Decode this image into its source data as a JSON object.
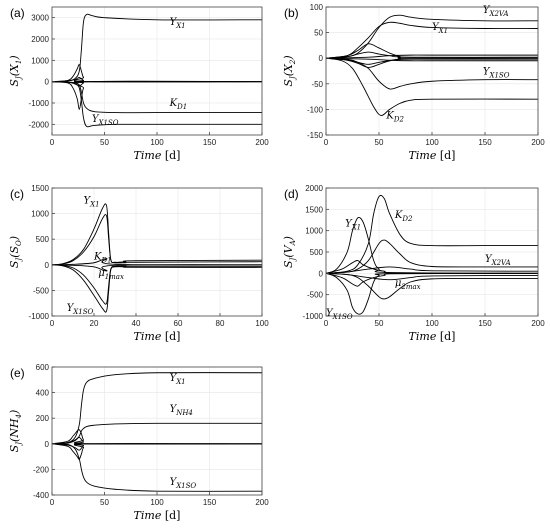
{
  "chart_data": [
    {
      "type": "line",
      "panel_label": "(a)",
      "ylabel": "S_J(X_1)",
      "xlabel": "Time [d]",
      "xlim": [
        0,
        200
      ],
      "ylim": [
        -2500,
        3500
      ],
      "xticks": [
        0,
        50,
        100,
        150,
        200
      ],
      "yticks": [
        -2000,
        -1000,
        0,
        1000,
        2000,
        3000
      ],
      "grid": true,
      "annotations": [
        {
          "text": "Y_X1",
          "x": 112,
          "y": 2650
        },
        {
          "text": "K_D1",
          "x": 112,
          "y": -1150
        },
        {
          "text": "Y_X1SO",
          "x": 38,
          "y": -1900
        }
      ],
      "series": [
        {
          "name": "Y_X1",
          "x": [
            0,
            15,
            22,
            26,
            28,
            30,
            33,
            38,
            50,
            100,
            200
          ],
          "y": [
            0,
            40,
            150,
            500,
            1500,
            2800,
            3150,
            3100,
            3000,
            2900,
            2900
          ]
        },
        {
          "name": "K_D1",
          "x": [
            0,
            15,
            22,
            26,
            28,
            30,
            33,
            40,
            60,
            100,
            200
          ],
          "y": [
            0,
            -20,
            -50,
            -150,
            -500,
            -1000,
            -1250,
            -1400,
            -1450,
            -1450,
            -1450
          ]
        },
        {
          "name": "Y_X1SO",
          "x": [
            0,
            15,
            22,
            26,
            28,
            30,
            33,
            40,
            60,
            100,
            200
          ],
          "y": [
            0,
            -30,
            -80,
            -300,
            -900,
            -1700,
            -2100,
            -2050,
            -2000,
            -2000,
            -2000
          ]
        },
        {
          "x": [
            0,
            15,
            20,
            24,
            26,
            28,
            30,
            35,
            200
          ],
          "y": [
            0,
            60,
            250,
            600,
            800,
            500,
            200,
            0,
            0
          ]
        },
        {
          "x": [
            0,
            15,
            20,
            24,
            26,
            28,
            30,
            35,
            200
          ],
          "y": [
            0,
            -60,
            -300,
            -800,
            -1300,
            -800,
            -300,
            0,
            0
          ]
        },
        {
          "x": [
            0,
            15,
            22,
            26,
            30,
            35,
            200
          ],
          "y": [
            0,
            30,
            100,
            200,
            60,
            0,
            0
          ]
        },
        {
          "x": [
            0,
            15,
            22,
            26,
            30,
            35,
            200
          ],
          "y": [
            0,
            -30,
            -100,
            -200,
            -60,
            0,
            0
          ]
        }
      ]
    },
    {
      "type": "line",
      "panel_label": "(b)",
      "ylabel": "S_J(X_2)",
      "xlabel": "Time [d]",
      "xlim": [
        0,
        200
      ],
      "ylim": [
        -150,
        100
      ],
      "xticks": [
        0,
        50,
        100,
        150,
        200
      ],
      "yticks": [
        -150,
        -100,
        -50,
        0,
        50,
        100
      ],
      "grid": true,
      "annotations": [
        {
          "text": "Y_X2VA",
          "x": 148,
          "y": 88
        },
        {
          "text": "Y_X1",
          "x": 100,
          "y": 55
        },
        {
          "text": "Y_X1SO",
          "x": 148,
          "y": -32
        },
        {
          "text": "K_D2",
          "x": 57,
          "y": -118
        }
      ],
      "series": [
        {
          "name": "Y_X2VA",
          "x": [
            0,
            20,
            30,
            40,
            50,
            60,
            70,
            80,
            100,
            150,
            200
          ],
          "y": [
            0,
            3,
            10,
            30,
            60,
            80,
            84,
            80,
            76,
            73,
            73
          ]
        },
        {
          "name": "Y_X1",
          "x": [
            0,
            20,
            30,
            40,
            50,
            60,
            70,
            80,
            100,
            150,
            200
          ],
          "y": [
            0,
            5,
            20,
            40,
            62,
            70,
            68,
            64,
            60,
            58,
            58
          ]
        },
        {
          "name": "Y_X1SO",
          "x": [
            0,
            20,
            30,
            40,
            50,
            60,
            70,
            80,
            100,
            150,
            200
          ],
          "y": [
            0,
            -2,
            -8,
            -20,
            -45,
            -60,
            -55,
            -50,
            -45,
            -42,
            -42
          ]
        },
        {
          "name": "K_D2",
          "x": [
            0,
            15,
            25,
            35,
            45,
            52,
            60,
            70,
            80,
            100,
            200
          ],
          "y": [
            0,
            -5,
            -20,
            -55,
            -95,
            -112,
            -100,
            -88,
            -82,
            -80,
            -80
          ]
        },
        {
          "x": [
            0,
            20,
            30,
            40,
            50,
            60,
            70,
            80,
            200
          ],
          "y": [
            0,
            5,
            15,
            28,
            20,
            10,
            3,
            0,
            0
          ]
        },
        {
          "x": [
            0,
            20,
            30,
            40,
            50,
            60,
            70,
            80,
            200
          ],
          "y": [
            0,
            -4,
            -10,
            -18,
            -12,
            -5,
            -2,
            0,
            0
          ]
        },
        {
          "x": [
            0,
            20,
            30,
            40,
            50,
            60,
            80,
            200
          ],
          "y": [
            0,
            3,
            8,
            12,
            8,
            5,
            2,
            2
          ]
        },
        {
          "x": [
            0,
            20,
            30,
            40,
            50,
            60,
            80,
            200
          ],
          "y": [
            0,
            -3,
            -8,
            -12,
            -8,
            -5,
            -2,
            -2
          ]
        },
        {
          "x": [
            0,
            40,
            60,
            80,
            100,
            200
          ],
          "y": [
            0,
            2,
            5,
            6,
            6,
            6
          ]
        },
        {
          "x": [
            0,
            40,
            60,
            80,
            100,
            200
          ],
          "y": [
            0,
            -2,
            -4,
            -5,
            -5,
            -5
          ]
        }
      ]
    },
    {
      "type": "line",
      "panel_label": "(c)",
      "ylabel": "S_J(S_O)",
      "xlabel": "Time [d]",
      "xlim": [
        0,
        100
      ],
      "ylim": [
        -1000,
        1500
      ],
      "xticks": [
        0,
        20,
        40,
        60,
        80,
        100
      ],
      "yticks": [
        -1000,
        -500,
        0,
        500,
        1000,
        1500
      ],
      "grid": true,
      "annotations": [
        {
          "text": "Y_X1",
          "x": 15,
          "y": 1200
        },
        {
          "text": "K_D1",
          "x": 20,
          "y": 100
        },
        {
          "text": "μ_1max",
          "x": 22,
          "y": -220
        },
        {
          "text": "Y_X1SO",
          "x": 7,
          "y": -900
        }
      ],
      "series": [
        {
          "name": "Y_X1",
          "x": [
            0,
            5,
            10,
            15,
            20,
            24,
            26,
            27,
            28,
            30,
            35,
            40,
            100
          ],
          "y": [
            0,
            20,
            100,
            300,
            700,
            1100,
            1150,
            600,
            100,
            50,
            60,
            80,
            90
          ]
        },
        {
          "name": "K_D1",
          "x": [
            0,
            5,
            10,
            15,
            20,
            24,
            26,
            27,
            28,
            30,
            35,
            40,
            100
          ],
          "y": [
            0,
            15,
            80,
            250,
            550,
            900,
            950,
            500,
            100,
            40,
            40,
            50,
            60
          ]
        },
        {
          "name": "Y_X1SO",
          "x": [
            0,
            5,
            10,
            15,
            20,
            24,
            26,
            27,
            28,
            30,
            35,
            40,
            100
          ],
          "y": [
            0,
            -20,
            -100,
            -300,
            -600,
            -850,
            -900,
            -500,
            -100,
            -40,
            -40,
            -50,
            -50
          ]
        },
        {
          "name": "μ_1max",
          "x": [
            0,
            5,
            10,
            15,
            20,
            24,
            26,
            27,
            28,
            30,
            35,
            40,
            100
          ],
          "y": [
            0,
            -10,
            -60,
            -200,
            -450,
            -700,
            -750,
            -400,
            -80,
            -30,
            -25,
            -30,
            -30
          ]
        },
        {
          "x": [
            0,
            10,
            20,
            26,
            30,
            100
          ],
          "y": [
            0,
            10,
            40,
            120,
            10,
            0
          ]
        },
        {
          "x": [
            0,
            10,
            20,
            26,
            30,
            100
          ],
          "y": [
            0,
            -10,
            -40,
            -120,
            -10,
            0
          ]
        }
      ]
    },
    {
      "type": "line",
      "panel_label": "(d)",
      "ylabel": "S_J(V_A)",
      "xlabel": "Time [d]",
      "xlim": [
        0,
        200
      ],
      "ylim": [
        -1000,
        2000
      ],
      "xticks": [
        0,
        50,
        100,
        150,
        200
      ],
      "yticks": [
        -1000,
        -500,
        0,
        500,
        1000,
        1500,
        2000
      ],
      "grid": true,
      "annotations": [
        {
          "text": "Y_X1",
          "x": 18,
          "y": 1100
        },
        {
          "text": "K_D2",
          "x": 65,
          "y": 1300
        },
        {
          "text": "Y_X2VA",
          "x": 150,
          "y": 270
        },
        {
          "text": "μ_2max",
          "x": 65,
          "y": -300
        },
        {
          "text": "Y_X1SO",
          "x": 0,
          "y": -1000
        }
      ],
      "series": [
        {
          "name": "K_D2",
          "x": [
            0,
            20,
            30,
            40,
            45,
            50,
            55,
            60,
            70,
            80,
            100,
            150,
            200
          ],
          "y": [
            0,
            50,
            200,
            700,
            1400,
            1800,
            1750,
            1400,
            900,
            700,
            650,
            650,
            650
          ]
        },
        {
          "name": "Y_X1",
          "x": [
            0,
            10,
            20,
            25,
            30,
            35,
            40,
            45,
            50,
            60,
            200
          ],
          "y": [
            0,
            100,
            500,
            1000,
            1300,
            1200,
            800,
            300,
            100,
            20,
            0
          ]
        },
        {
          "name": "Y_X2VA",
          "x": [
            0,
            20,
            30,
            40,
            50,
            55,
            60,
            70,
            80,
            100,
            150,
            200
          ],
          "y": [
            0,
            30,
            100,
            300,
            700,
            780,
            700,
            450,
            250,
            160,
            150,
            150
          ]
        },
        {
          "name": "Y_X1SO",
          "x": [
            0,
            10,
            20,
            25,
            30,
            35,
            40,
            45,
            50,
            60,
            200
          ],
          "y": [
            0,
            -100,
            -400,
            -800,
            -950,
            -900,
            -600,
            -200,
            -50,
            -10,
            0
          ]
        },
        {
          "name": "μ_2max",
          "x": [
            0,
            20,
            30,
            40,
            50,
            55,
            60,
            70,
            80,
            100,
            150,
            200
          ],
          "y": [
            0,
            -30,
            -100,
            -300,
            -550,
            -600,
            -550,
            -350,
            -200,
            -130,
            -120,
            -120
          ]
        },
        {
          "x": [
            0,
            15,
            25,
            30,
            35,
            45,
            55,
            70,
            200
          ],
          "y": [
            0,
            100,
            250,
            300,
            200,
            100,
            50,
            0,
            0
          ]
        },
        {
          "x": [
            0,
            15,
            25,
            30,
            35,
            45,
            55,
            70,
            200
          ],
          "y": [
            0,
            -100,
            -250,
            -300,
            -200,
            -100,
            -50,
            0,
            0
          ]
        },
        {
          "x": [
            0,
            20,
            40,
            60,
            80,
            100,
            200
          ],
          "y": [
            0,
            30,
            100,
            150,
            100,
            60,
            50
          ]
        },
        {
          "x": [
            0,
            20,
            40,
            60,
            80,
            100,
            200
          ],
          "y": [
            0,
            -30,
            -100,
            -150,
            -100,
            -60,
            -50
          ]
        }
      ]
    },
    {
      "type": "line",
      "panel_label": "(e)",
      "ylabel": "S_J(NH_4)",
      "xlabel": "Time [d]",
      "xlim": [
        0,
        200
      ],
      "ylim": [
        -400,
        600
      ],
      "xticks": [
        0,
        50,
        100,
        150,
        200
      ],
      "yticks": [
        -400,
        -200,
        0,
        200,
        400,
        600
      ],
      "grid": true,
      "annotations": [
        {
          "text": "Y_X1",
          "x": 112,
          "y": 490
        },
        {
          "text": "Y_NH4",
          "x": 112,
          "y": 250
        },
        {
          "text": "Y_X1SO",
          "x": 112,
          "y": -320
        }
      ],
      "series": [
        {
          "name": "Y_X1",
          "x": [
            0,
            15,
            22,
            26,
            28,
            30,
            33,
            40,
            60,
            100,
            200
          ],
          "y": [
            0,
            10,
            50,
            150,
            300,
            420,
            480,
            510,
            540,
            555,
            555
          ]
        },
        {
          "name": "Y_NH4",
          "x": [
            0,
            15,
            22,
            26,
            28,
            30,
            33,
            40,
            60,
            100,
            200
          ],
          "y": [
            0,
            5,
            25,
            60,
            100,
            120,
            135,
            145,
            155,
            160,
            160
          ]
        },
        {
          "name": "Y_X1SO",
          "x": [
            0,
            15,
            22,
            26,
            28,
            30,
            33,
            40,
            60,
            100,
            200
          ],
          "y": [
            0,
            -5,
            -40,
            -120,
            -200,
            -260,
            -300,
            -330,
            -355,
            -370,
            -370
          ]
        },
        {
          "x": [
            0,
            15,
            20,
            24,
            26,
            28,
            30,
            35,
            200
          ],
          "y": [
            0,
            20,
            60,
            100,
            110,
            80,
            30,
            0,
            0
          ]
        },
        {
          "x": [
            0,
            15,
            20,
            24,
            26,
            28,
            30,
            35,
            200
          ],
          "y": [
            0,
            -20,
            -60,
            -100,
            -120,
            -80,
            -30,
            0,
            0
          ]
        },
        {
          "x": [
            0,
            15,
            22,
            26,
            30,
            35,
            200
          ],
          "y": [
            0,
            10,
            30,
            50,
            15,
            0,
            0
          ]
        },
        {
          "x": [
            0,
            15,
            22,
            26,
            30,
            35,
            200
          ],
          "y": [
            0,
            -10,
            -30,
            -50,
            -15,
            0,
            0
          ]
        }
      ]
    }
  ]
}
